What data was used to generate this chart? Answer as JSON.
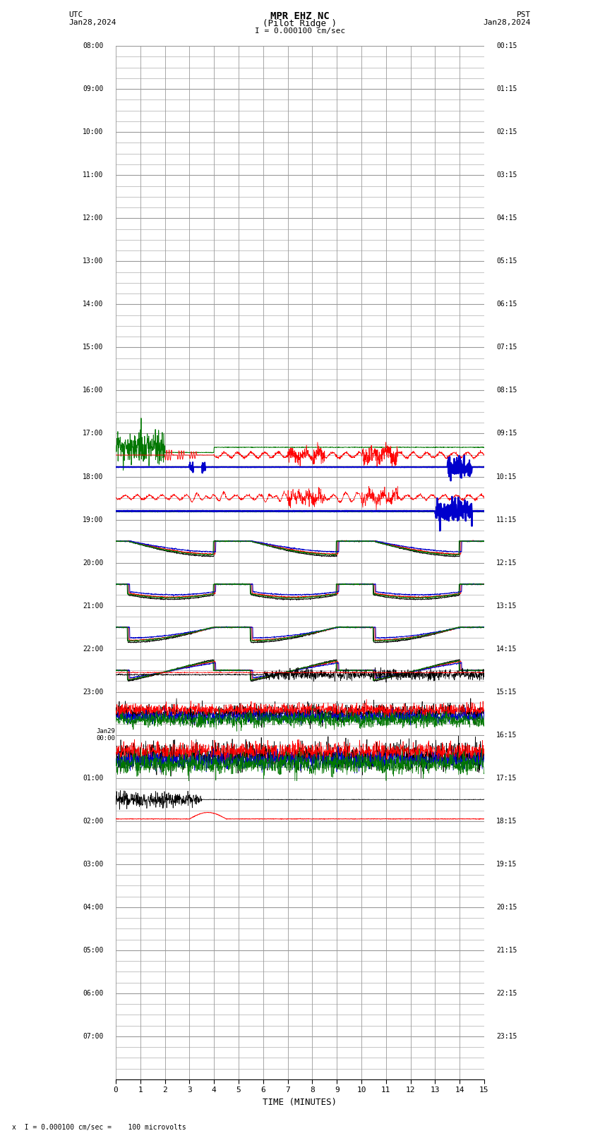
{
  "title_line1": "MPR EHZ NC",
  "title_line2": "(Pilot Ridge )",
  "scale_label": "I = 0.000100 cm/sec",
  "left_label_top": "UTC",
  "left_label_date": "Jan28,2024",
  "right_label_top": "PST",
  "right_label_date": "Jan28,2024",
  "bottom_label": "TIME (MINUTES)",
  "bottom_note": "x  I = 0.000100 cm/sec =    100 microvolts",
  "utc_times": [
    "08:00",
    "09:00",
    "10:00",
    "11:00",
    "12:00",
    "13:00",
    "14:00",
    "15:00",
    "16:00",
    "17:00",
    "18:00",
    "19:00",
    "20:00",
    "21:00",
    "22:00",
    "23:00",
    "Jan29\n00:00",
    "01:00",
    "02:00",
    "03:00",
    "04:00",
    "05:00",
    "06:00",
    "07:00"
  ],
  "pst_times": [
    "00:15",
    "01:15",
    "02:15",
    "03:15",
    "04:15",
    "05:15",
    "06:15",
    "07:15",
    "08:15",
    "09:15",
    "10:15",
    "11:15",
    "12:15",
    "13:15",
    "14:15",
    "15:15",
    "16:15",
    "17:15",
    "18:15",
    "19:15",
    "20:15",
    "21:15",
    "22:15",
    "23:15"
  ],
  "n_rows": 24,
  "n_minutes": 15,
  "fig_width": 8.5,
  "fig_height": 16.13,
  "bg_color": "#ffffff",
  "grid_color": "#999999",
  "trace_black": "#000000",
  "trace_red": "#ff0000",
  "trace_blue": "#0000cc",
  "trace_green": "#007700"
}
